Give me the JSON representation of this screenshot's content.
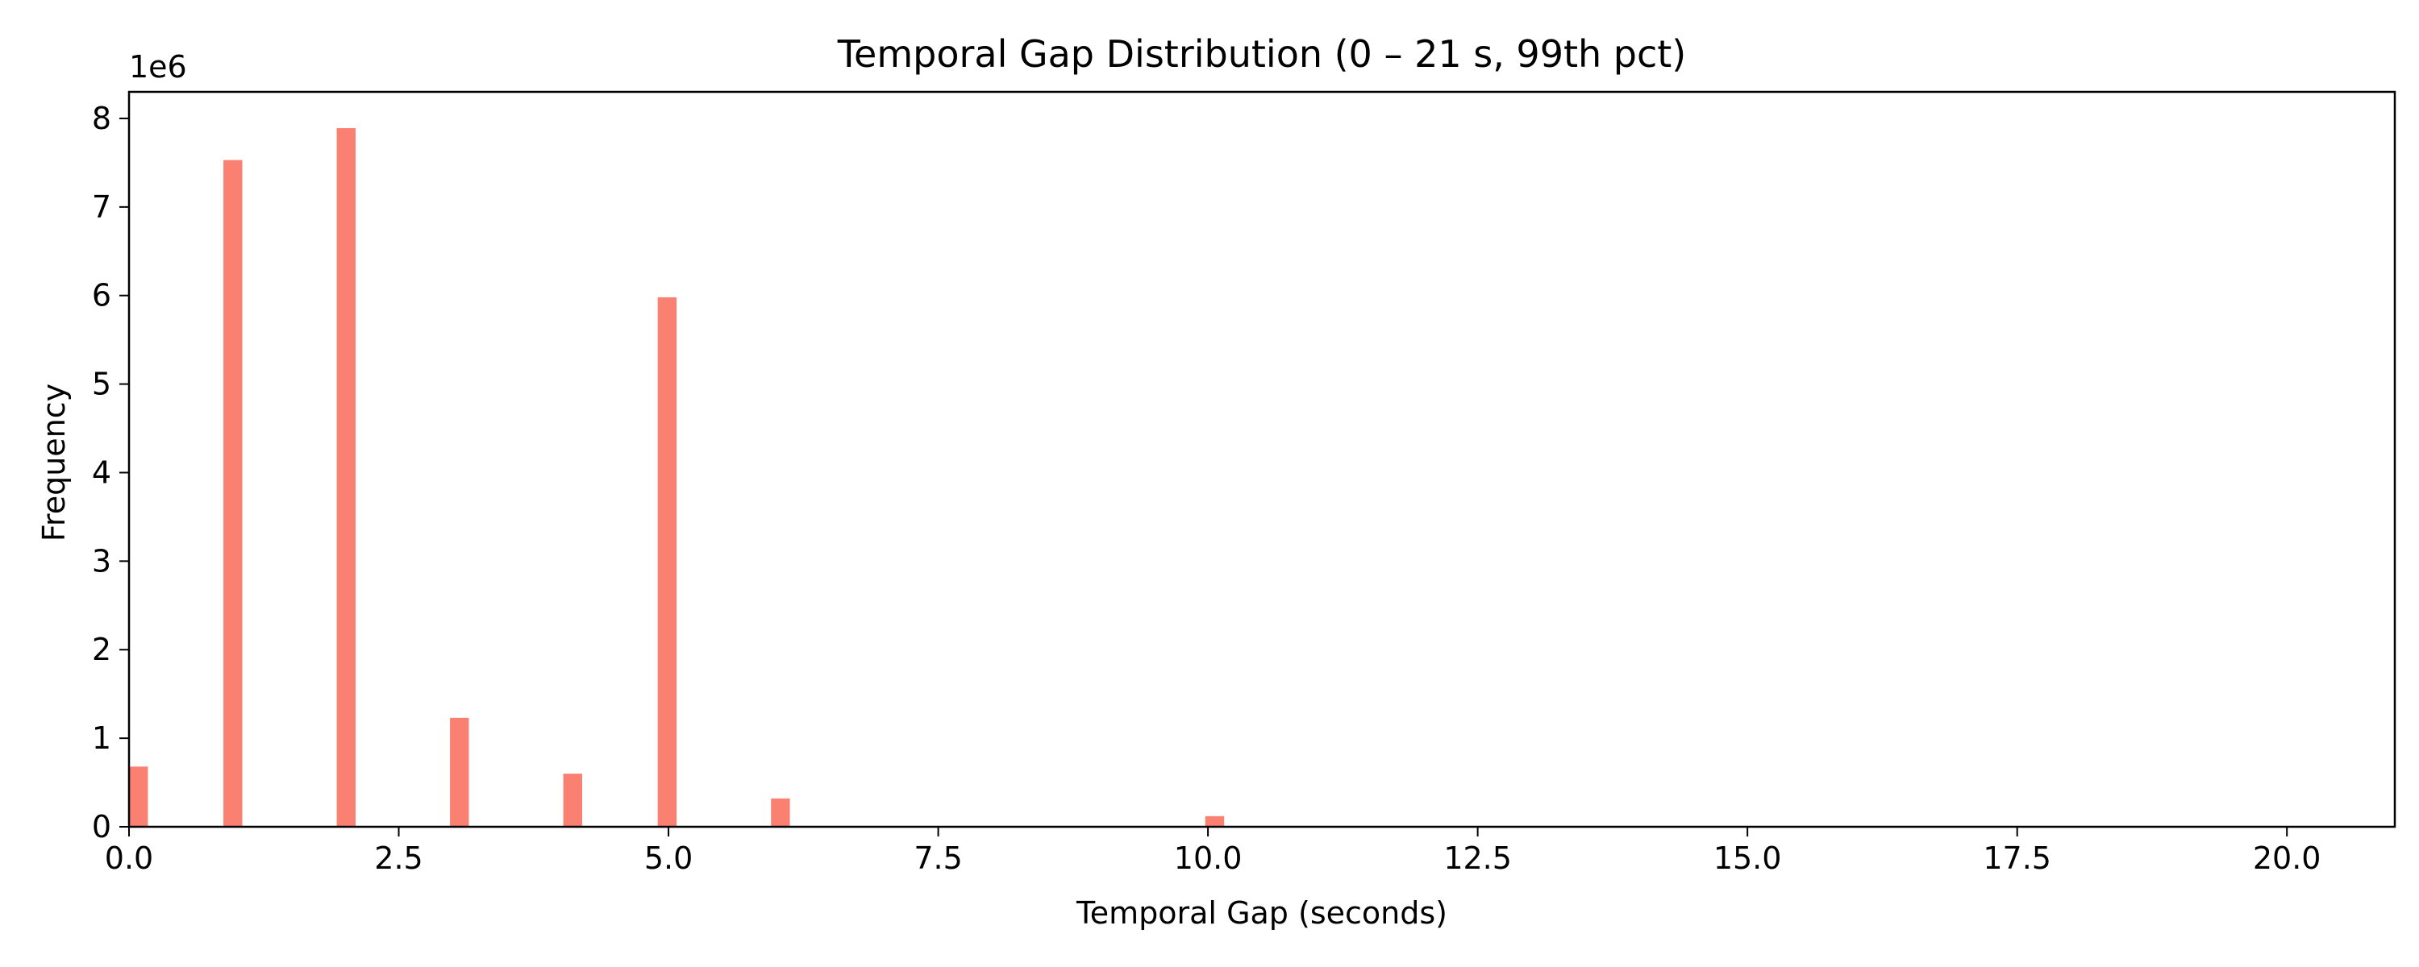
{
  "chart_data": {
    "type": "bar",
    "title": "Temporal Gap Distribution (0 – 21 s, 99th pct)",
    "xlabel": "Temporal Gap (seconds)",
    "ylabel": "Frequency",
    "y_offset_label": "1e6",
    "xlim": [
      0,
      21
    ],
    "ylim": [
      0,
      8.3
    ],
    "x_ticks": [
      0,
      2.5,
      5,
      7.5,
      10,
      12.5,
      15,
      17.5,
      20
    ],
    "x_tick_labels": [
      "0.0",
      "2.5",
      "5.0",
      "7.5",
      "10.0",
      "12.5",
      "15.0",
      "17.5",
      "20.0"
    ],
    "y_ticks": [
      0,
      1,
      2,
      3,
      4,
      5,
      6,
      7,
      8
    ],
    "y_tick_labels": [
      "0",
      "1",
      "2",
      "3",
      "4",
      "5",
      "6",
      "7",
      "8"
    ],
    "bin_width": 0.175,
    "grid": false,
    "bar_color": "#fa8072",
    "bars": [
      {
        "x_start": 0.0,
        "value": 0.68
      },
      {
        "x_start": 0.875,
        "value": 7.53
      },
      {
        "x_start": 1.925,
        "value": 7.89
      },
      {
        "x_start": 2.975,
        "value": 1.23
      },
      {
        "x_start": 4.025,
        "value": 0.6
      },
      {
        "x_start": 4.9,
        "value": 5.98
      },
      {
        "x_start": 5.95,
        "value": 0.32
      },
      {
        "x_start": 9.975,
        "value": 0.12
      }
    ]
  }
}
